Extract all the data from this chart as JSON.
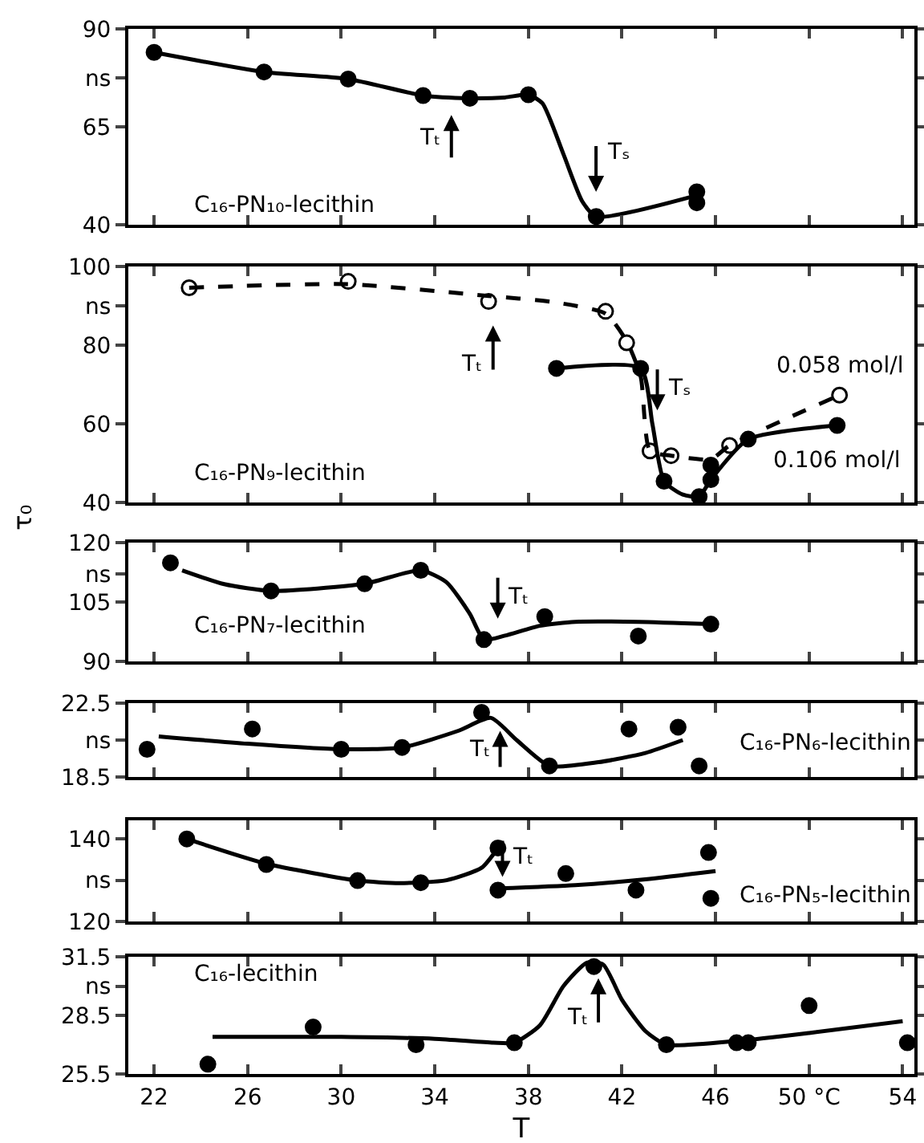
{
  "chart_data": [
    {
      "type": "line",
      "title": "C₁₆-PN₁₀-lecithin",
      "xlim": [
        20.9,
        54.5
      ],
      "xticks": [
        22,
        26,
        30,
        34,
        38,
        42,
        46,
        50,
        54
      ],
      "ylim": [
        40,
        90
      ],
      "yticks": [
        40,
        65,
        {
          "value": 77.5,
          "label": "ns"
        },
        90
      ],
      "tick_labels": "y",
      "series": [
        {
          "type": "scatter",
          "marker": "circle",
          "color": "#000000",
          "x": [
            22.0,
            26.7,
            30.3,
            33.5,
            35.5,
            38.0,
            40.9,
            45.2,
            45.2
          ],
          "values": [
            84,
            79,
            77.2,
            73,
            72.3,
            73.2,
            42.1,
            48.4,
            45.6
          ]
        },
        {
          "type": "line",
          "marker": "none",
          "line_style": "solid",
          "color": "#000000",
          "x": [
            22.0,
            26.7,
            30.3,
            33.5,
            35.5,
            37.0,
            38.0,
            38.6,
            39.5,
            40.3,
            40.9,
            45.2
          ],
          "values": [
            84,
            79,
            77.2,
            73,
            72.3,
            72.5,
            73.2,
            71,
            58,
            46,
            42.1,
            47.5
          ]
        }
      ],
      "annotations": [
        "Tₜ",
        "Tₛ"
      ]
    },
    {
      "type": "line",
      "title": "C₁₆-PN₉-lecithin",
      "ylabel": "τ₀",
      "xlim": [
        20.9,
        54.5
      ],
      "xticks": [
        22,
        26,
        30,
        34,
        38,
        42,
        46,
        50,
        54
      ],
      "ylim": [
        40,
        100
      ],
      "yticks": [
        40,
        60,
        80,
        {
          "value": 90,
          "label": "ns"
        },
        100
      ],
      "tick_labels": "y",
      "series": [
        {
          "type": "scatter",
          "name": "0.058 mol/l",
          "marker": "circle",
          "color": "#ffffff",
          "x": [
            23.5,
            30.3,
            36.3,
            41.3,
            42.2,
            43.2,
            44.1,
            46.6,
            51.3
          ],
          "values": [
            94.6,
            96.2,
            91.1,
            88.6,
            80.6,
            53.1,
            51.9,
            54.5,
            67.3
          ]
        },
        {
          "type": "line",
          "marker": "none",
          "line_style": "dashed",
          "color": "#000000",
          "x": [
            23.5,
            30.3,
            36.3,
            39.0,
            41.3,
            42.2,
            42.8,
            43.2,
            44.1,
            45.8,
            46.6,
            51.3
          ],
          "values": [
            94.6,
            95.5,
            92.5,
            91,
            88,
            81,
            72,
            53.1,
            51.9,
            51,
            54.5,
            67.3
          ]
        },
        {
          "type": "scatter",
          "name": "0.106 mol/l",
          "marker": "circle",
          "color": "#000000",
          "x": [
            39.2,
            42.8,
            43.8,
            45.3,
            45.8,
            45.8,
            47.4,
            51.2
          ],
          "values": [
            74.1,
            74.1,
            45.4,
            41.5,
            49.5,
            45.8,
            56.1,
            59.6
          ]
        },
        {
          "type": "line",
          "marker": "none",
          "line_style": "solid",
          "color": "#000000",
          "x": [
            39.2,
            42.8,
            43.3,
            43.8,
            44.6,
            45.3,
            45.8,
            47.4,
            51.2
          ],
          "values": [
            74.1,
            74.1,
            60,
            45.4,
            42,
            41.5,
            45.8,
            56.1,
            59.6
          ]
        }
      ],
      "annotations": [
        "Tₜ",
        "Tₛ"
      ]
    },
    {
      "type": "line",
      "title": "C₁₆-PN₇-lecithin",
      "xlim": [
        20.9,
        54.5
      ],
      "xticks": [
        22,
        26,
        30,
        34,
        38,
        42,
        46,
        50,
        54
      ],
      "ylim": [
        90,
        120
      ],
      "yticks": [
        90,
        105,
        {
          "value": 112,
          "label": "ns"
        },
        120
      ],
      "tick_labels": "y",
      "series": [
        {
          "type": "scatter",
          "marker": "circle",
          "color": "#000000",
          "x": [
            22.7,
            27.0,
            31.0,
            33.4,
            36.1,
            38.7,
            42.7,
            45.8
          ],
          "values": [
            114.9,
            107.8,
            109.6,
            113,
            95.5,
            101.3,
            96.4,
            99.4
          ]
        },
        {
          "type": "line",
          "marker": "none",
          "line_style": "solid",
          "color": "#000000",
          "x": [
            23.2,
            25.0,
            27.0,
            31.0,
            33.4,
            34.5,
            35.5,
            36.1,
            37.0,
            38.5,
            40.0,
            42.7,
            45.8
          ],
          "values": [
            113,
            109.5,
            107.8,
            109.6,
            113,
            110,
            102,
            95.5,
            96.5,
            99,
            100,
            100,
            99.4
          ]
        }
      ],
      "annotations": [
        "Tₜ"
      ]
    },
    {
      "type": "line",
      "title": "C₁₆-PN₆-lecithin",
      "xlim": [
        20.9,
        54.5
      ],
      "xticks": [
        22,
        26,
        30,
        34,
        38,
        42,
        46,
        50,
        54
      ],
      "ylim": [
        18.5,
        22.5
      ],
      "yticks": [
        18.5,
        {
          "value": 20.5,
          "label": "ns"
        },
        22.5
      ],
      "tick_labels": "y",
      "series": [
        {
          "type": "scatter",
          "marker": "circle",
          "color": "#000000",
          "x": [
            21.7,
            26.2,
            30.0,
            32.6,
            36.0,
            38.9,
            42.3,
            44.4,
            45.3
          ],
          "values": [
            20.0,
            21.1,
            20.0,
            20.1,
            22.0,
            19.1,
            21.1,
            21.2,
            19.1
          ]
        },
        {
          "type": "line",
          "marker": "none",
          "line_style": "solid",
          "color": "#000000",
          "x": [
            22.2,
            26.0,
            30.0,
            32.6,
            35.0,
            36.4,
            37.5,
            38.9,
            41.0,
            43.0,
            44.6
          ],
          "values": [
            20.7,
            20.3,
            20.0,
            20.1,
            21,
            21.7,
            20.5,
            19.1,
            19.3,
            19.8,
            20.5
          ]
        }
      ],
      "annotations": [
        "Tₜ"
      ]
    },
    {
      "type": "line",
      "title": "C₁₆-PN₅-lecithin",
      "xlim": [
        20.9,
        54.5
      ],
      "xticks": [
        22,
        26,
        30,
        34,
        38,
        42,
        46,
        50,
        54
      ],
      "ylim": [
        120,
        144.5
      ],
      "yticks": [
        120,
        {
          "value": 130,
          "label": "ns"
        },
        140
      ],
      "tick_labels": "y",
      "series": [
        {
          "type": "scatter",
          "marker": "circle",
          "color": "#000000",
          "x": [
            23.4,
            26.8,
            30.7,
            33.4,
            36.7,
            36.7,
            39.6,
            42.6,
            45.7,
            45.8
          ],
          "values": [
            140,
            133.8,
            129.9,
            129.4,
            137.8,
            127.6,
            131.6,
            127.6,
            136.7,
            125.6
          ]
        },
        {
          "type": "line",
          "marker": "none",
          "line_style": "solid",
          "color": "#000000",
          "x": [
            23.4,
            26.8,
            30.7,
            32.5,
            34.5,
            36.0,
            36.7
          ],
          "values": [
            140,
            134,
            129.9,
            129.3,
            130,
            133,
            137.8
          ]
        },
        {
          "type": "line",
          "marker": "none",
          "line_style": "solid",
          "color": "#000000",
          "x": [
            36.7,
            40.0,
            43.0,
            46.0
          ],
          "values": [
            128,
            128.8,
            130.2,
            132.2
          ]
        }
      ],
      "annotations": [
        "Tₜ"
      ]
    },
    {
      "type": "line",
      "title": "C₁₆-lecithin",
      "xlabel": "T",
      "xlim": [
        20.9,
        54.5
      ],
      "xticks": [
        22,
        26,
        30,
        34,
        38,
        42,
        46,
        {
          "value": 50,
          "label": "50 °C"
        },
        54
      ],
      "ylim": [
        25.5,
        31.5
      ],
      "yticks": [
        25.5,
        28.5,
        {
          "value": 30,
          "label": "ns"
        },
        31.5
      ],
      "series": [
        {
          "type": "scatter",
          "marker": "circle",
          "color": "#000000",
          "x": [
            24.3,
            28.8,
            33.2,
            37.4,
            40.8,
            43.9,
            46.9,
            47.4,
            50.0,
            54.2
          ],
          "values": [
            26.0,
            27.9,
            27.0,
            27.1,
            31.0,
            27.0,
            27.1,
            27.1,
            29.0,
            27.1
          ]
        },
        {
          "type": "line",
          "marker": "none",
          "line_style": "solid",
          "color": "#000000",
          "x": [
            24.5,
            30.0,
            34.0,
            36.5,
            37.4,
            38.5,
            39.5,
            40.5,
            41.2,
            42.0,
            43.0,
            43.9,
            47.0,
            50.0,
            54.0
          ],
          "values": [
            27.4,
            27.4,
            27.3,
            27.1,
            27.1,
            28,
            30,
            31.2,
            31.1,
            29.3,
            27.7,
            27.0,
            27.2,
            27.6,
            28.2
          ]
        }
      ],
      "annotations": [
        "Tₜ"
      ]
    }
  ]
}
